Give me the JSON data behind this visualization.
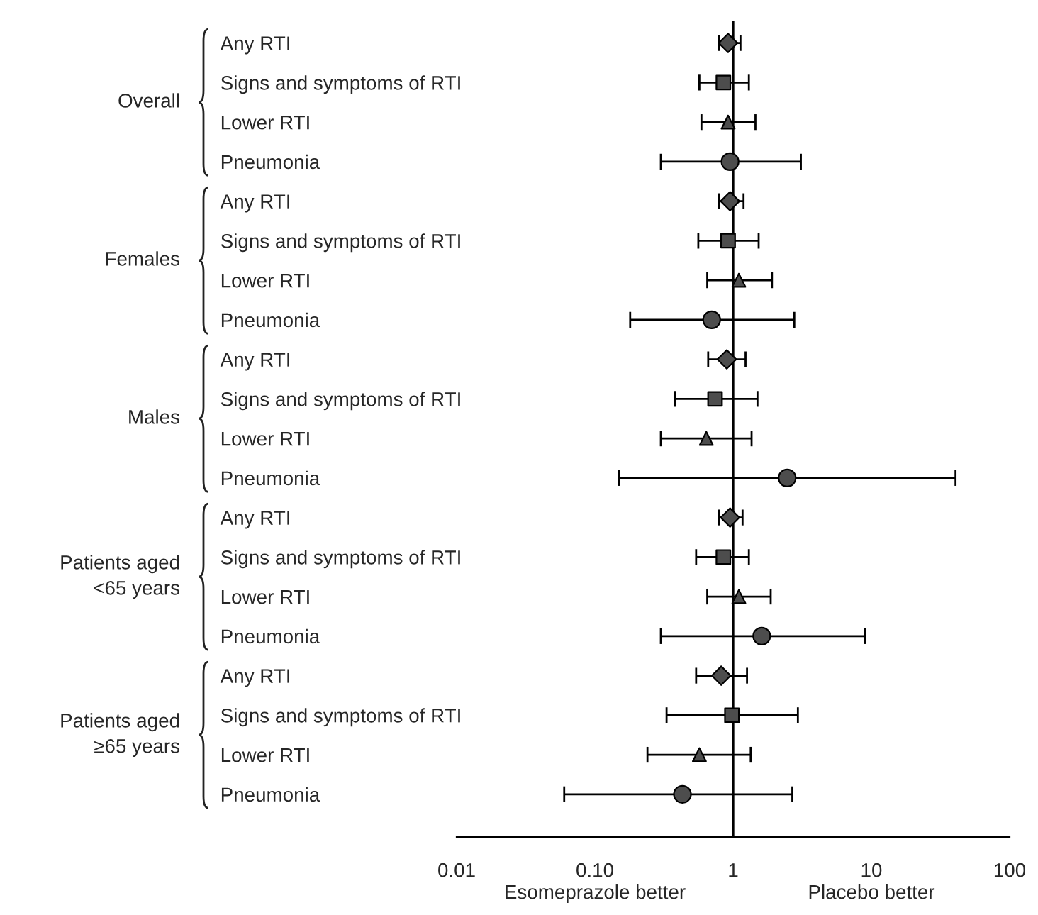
{
  "chart_data": {
    "type": "scatter",
    "orientation": "horizontal",
    "log": "x",
    "categories": [
      "Any RTI",
      "Signs and symptoms of RTI",
      "Lower RTI",
      "Pneumonia",
      "Any RTI",
      "Signs and symptoms of RTI",
      "Lower RTI",
      "Pneumonia",
      "Any RTI",
      "Signs and symptoms of RTI",
      "Lower RTI",
      "Pneumonia",
      "Any RTI",
      "Signs and symptoms of RTI",
      "Lower RTI",
      "Pneumonia",
      "Any RTI",
      "Signs and symptoms of RTI",
      "Lower RTI",
      "Pneumonia"
    ],
    "series": [
      {
        "color": "#4d4d4d",
        "marker": "diamond",
        "values": [
          0.92,
          null,
          null,
          null,
          0.95,
          null,
          null,
          null,
          0.9,
          null,
          null,
          null,
          0.95,
          null,
          null,
          null,
          0.82,
          null,
          null,
          null
        ],
        "errors": [
          [
            0.79,
            1.13
          ],
          null,
          null,
          null,
          [
            0.79,
            1.19
          ],
          null,
          null,
          null,
          [
            0.66,
            1.23
          ],
          null,
          null,
          null,
          [
            0.79,
            1.17
          ],
          null,
          null,
          null,
          [
            0.54,
            1.26
          ],
          null,
          null,
          null
        ]
      },
      {
        "color": "#4d4d4d",
        "marker": "square",
        "values": [
          null,
          0.85,
          null,
          null,
          null,
          0.92,
          null,
          null,
          null,
          0.74,
          null,
          null,
          null,
          0.85,
          null,
          null,
          null,
          0.98,
          null,
          null
        ],
        "errors": [
          null,
          [
            0.57,
            1.3
          ],
          null,
          null,
          null,
          [
            0.56,
            1.53
          ],
          null,
          null,
          null,
          [
            0.38,
            1.5
          ],
          null,
          null,
          null,
          [
            0.54,
            1.3
          ],
          null,
          null,
          null,
          [
            0.33,
            2.94
          ],
          null,
          null
        ]
      },
      {
        "color": "#4d4d4d",
        "marker": "triangle",
        "values": [
          null,
          null,
          0.92,
          null,
          null,
          null,
          1.1,
          null,
          null,
          null,
          0.64,
          null,
          null,
          null,
          1.1,
          null,
          null,
          null,
          0.57,
          null
        ],
        "errors": [
          null,
          null,
          [
            0.59,
            1.45
          ],
          null,
          null,
          null,
          [
            0.65,
            1.91
          ],
          null,
          null,
          null,
          [
            0.3,
            1.36
          ],
          null,
          null,
          null,
          [
            0.65,
            1.87
          ],
          null,
          null,
          null,
          [
            0.24,
            1.34
          ],
          null
        ]
      },
      {
        "color": "#4d4d4d",
        "marker": "circle",
        "values": [
          null,
          null,
          null,
          0.95,
          null,
          null,
          null,
          0.7,
          null,
          null,
          null,
          2.46,
          null,
          null,
          null,
          1.61,
          null,
          null,
          null,
          0.43
        ],
        "errors": [
          null,
          null,
          null,
          [
            0.3,
            3.09
          ],
          null,
          null,
          null,
          [
            0.18,
            2.77
          ],
          null,
          null,
          null,
          [
            0.15,
            40.6
          ],
          null,
          null,
          null,
          [
            0.3,
            8.98
          ],
          null,
          null,
          null,
          [
            0.06,
            2.68
          ]
        ]
      }
    ],
    "xlim": [
      0.01,
      100
    ],
    "xticks": [
      0.01,
      {
        "value": 0.1,
        "label": "0.10"
      },
      1,
      10,
      100
    ],
    "ref_lines": [
      {
        "axis": "x",
        "value": 1,
        "color": "#000000"
      }
    ],
    "grid": false,
    "legend": false,
    "annotations": [
      "Overall",
      "Females",
      "Males",
      "Patients aged\n<65 years",
      "Patients aged\n≥65 years",
      "Esomeprazole better",
      "Placebo better"
    ]
  }
}
